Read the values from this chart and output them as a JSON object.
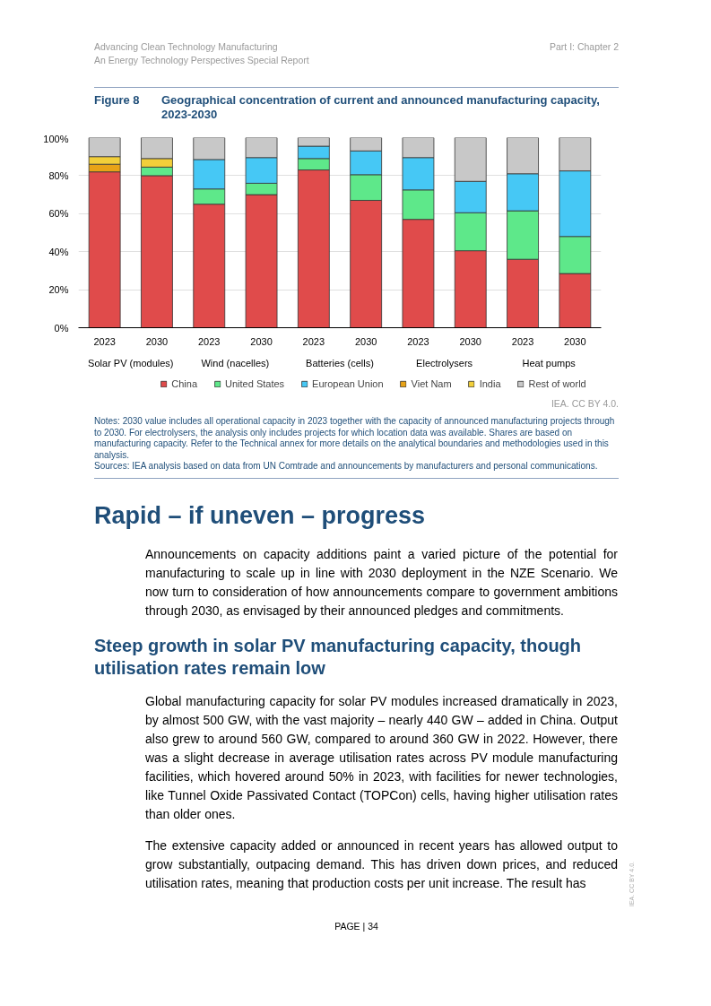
{
  "chart_data": {
    "type": "bar",
    "stacked": true,
    "title": "Figure 8",
    "subtitle": "Geographical concentration of current and announced manufacturing capacity, 2023-2030",
    "categories": [
      "2023",
      "2030",
      "2023",
      "2030",
      "2023",
      "2030",
      "2023",
      "2030",
      "2023",
      "2030"
    ],
    "series": [
      {
        "name": "China",
        "color": "#e04b4b",
        "values": [
          82,
          80,
          65,
          70,
          83,
          67,
          57,
          40.5,
          36,
          28.5
        ]
      },
      {
        "name": "United States",
        "color": "#5ee88a",
        "values": [
          null,
          4.5,
          8,
          6,
          6,
          13.5,
          15.5,
          20,
          25.5,
          19.5
        ]
      },
      {
        "name": "European Union",
        "color": "#46c8f5",
        "values": [
          null,
          null,
          15.5,
          13.5,
          6.5,
          12.5,
          17,
          16.5,
          19.5,
          34.5
        ]
      },
      {
        "name": "Viet Nam",
        "color": "#e8a317",
        "values": [
          4,
          null,
          null,
          null,
          null,
          null,
          null,
          null,
          null,
          null
        ]
      },
      {
        "name": "India",
        "color": "#f2cf3a",
        "values": [
          4,
          4.5,
          null,
          null,
          null,
          null,
          null,
          null,
          null,
          null
        ]
      },
      {
        "name": "Rest of world",
        "color": "#c8c8c8",
        "values": [
          10,
          11,
          11.5,
          10.5,
          4.5,
          7,
          10.5,
          23,
          19,
          17.5
        ]
      }
    ],
    "ylim": [
      0,
      100
    ],
    "yticks": [
      {
        "value": 0,
        "label": "0%"
      },
      {
        "value": 20,
        "label": "20%"
      },
      {
        "value": 40,
        "label": "40%"
      },
      {
        "value": 60,
        "label": "60%"
      },
      {
        "value": 80,
        "label": "80%"
      },
      {
        "value": 100,
        "label": "100%"
      }
    ],
    "grid": "y",
    "legend": "bottom",
    "annotations": [
      "Solar PV (modules)",
      "Wind (nacelles)",
      "Batteries (cells)",
      "Electrolysers",
      "Heat pumps",
      "IEA. CC BY 4.0.",
      "Notes: 2030 value includes all operational capacity in 2023 together with the capacity of announced manufacturing projects through to 2030. For electrolysers, the analysis only includes projects for which location data was available. Shares are based on manufacturing capacity. Refer to the Technical annex for more details on the analytical boundaries and methodologies used in this analysis.",
      "Sources: IEA analysis based on data from UN Comtrade and announcements by manufacturers and personal communications.",
      "Advancing Clean Technology Manufacturing",
      "An Energy Technology Perspectives Special Report",
      "Part I: Chapter 2",
      "Rapid – if uneven – progress",
      "Announcements on capacity additions paint a varied picture of the potential for manufacturing to scale up in line with 2030 deployment in the NZE Scenario. We now turn to consideration of how announcements compare to government ambitions through 2030, as envisaged by their announced pledges and commitments.",
      "Steep growth in solar PV manufacturing capacity, though utilisation rates remain low",
      "Global manufacturing capacity for solar PV modules increased dramatically in 2023, by almost 500 GW, with the vast majority – nearly 440 GW – added in China. Output also grew to around 560 GW, compared to around 360 GW in 2022. However, there was a slight decrease in average utilisation rates across PV module manufacturing facilities, which hovered around 50% in 2023, with facilities for newer technologies, like Tunnel Oxide Passivated Contact (TOPCon) cells, having higher utilisation rates than older ones.",
      "The extensive capacity added or announced in recent years has allowed output to grow substantially, outpacing demand. This has driven down prices, and reduced utilisation rates, meaning that production costs per unit increase. The result has",
      "PAGE | 34",
      "IEA. CC BY 4.0."
    ]
  }
}
